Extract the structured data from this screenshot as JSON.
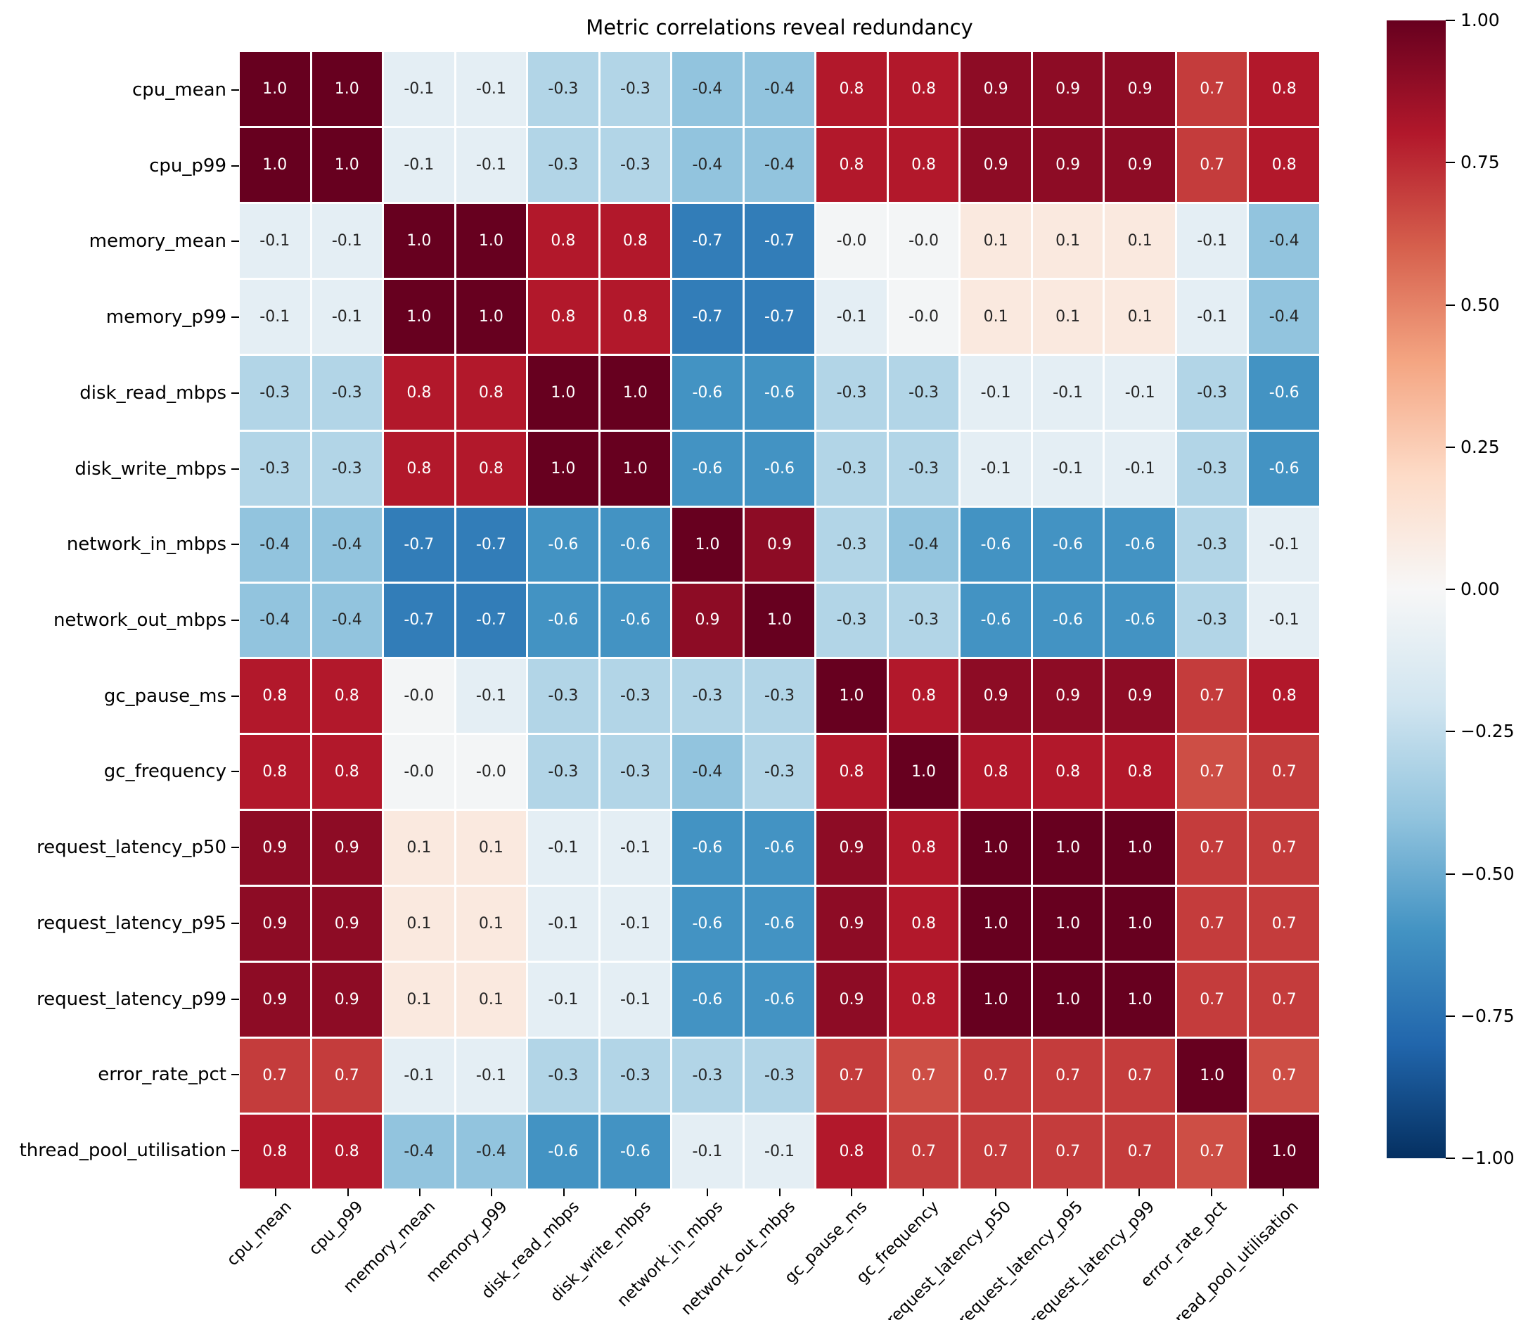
{
  "chart_data": {
    "type": "heatmap",
    "title": "Metric correlations reveal redundancy",
    "metrics": [
      "cpu_mean",
      "cpu_p99",
      "memory_mean",
      "memory_p99",
      "disk_read_mbps",
      "disk_write_mbps",
      "network_in_mbps",
      "network_out_mbps",
      "gc_pause_ms",
      "gc_frequency",
      "request_latency_p50",
      "request_latency_p95",
      "request_latency_p99",
      "error_rate_pct",
      "thread_pool_utilisation"
    ],
    "values": [
      [
        "1.0",
        "1.0",
        "-0.1",
        "-0.1",
        "-0.3",
        "-0.3",
        "-0.4",
        "-0.4",
        "0.8",
        "0.8",
        "0.9",
        "0.9",
        "0.9",
        "0.7",
        "0.8"
      ],
      [
        "1.0",
        "1.0",
        "-0.1",
        "-0.1",
        "-0.3",
        "-0.3",
        "-0.4",
        "-0.4",
        "0.8",
        "0.8",
        "0.9",
        "0.9",
        "0.9",
        "0.7",
        "0.8"
      ],
      [
        "-0.1",
        "-0.1",
        "1.0",
        "1.0",
        "0.8",
        "0.8",
        "-0.7",
        "-0.7",
        "-0.0",
        "-0.0",
        "0.1",
        "0.1",
        "0.1",
        "-0.1",
        "-0.4"
      ],
      [
        "-0.1",
        "-0.1",
        "1.0",
        "1.0",
        "0.8",
        "0.8",
        "-0.7",
        "-0.7",
        "-0.1",
        "-0.0",
        "0.1",
        "0.1",
        "0.1",
        "-0.1",
        "-0.4"
      ],
      [
        "-0.3",
        "-0.3",
        "0.8",
        "0.8",
        "1.0",
        "1.0",
        "-0.6",
        "-0.6",
        "-0.3",
        "-0.3",
        "-0.1",
        "-0.1",
        "-0.1",
        "-0.3",
        "-0.6"
      ],
      [
        "-0.3",
        "-0.3",
        "0.8",
        "0.8",
        "1.0",
        "1.0",
        "-0.6",
        "-0.6",
        "-0.3",
        "-0.3",
        "-0.1",
        "-0.1",
        "-0.1",
        "-0.3",
        "-0.6"
      ],
      [
        "-0.4",
        "-0.4",
        "-0.7",
        "-0.7",
        "-0.6",
        "-0.6",
        "1.0",
        "0.9",
        "-0.3",
        "-0.4",
        "-0.6",
        "-0.6",
        "-0.6",
        "-0.3",
        "-0.1"
      ],
      [
        "-0.4",
        "-0.4",
        "-0.7",
        "-0.7",
        "-0.6",
        "-0.6",
        "0.9",
        "1.0",
        "-0.3",
        "-0.3",
        "-0.6",
        "-0.6",
        "-0.6",
        "-0.3",
        "-0.1"
      ],
      [
        "0.8",
        "0.8",
        "-0.0",
        "-0.1",
        "-0.3",
        "-0.3",
        "-0.3",
        "-0.3",
        "1.0",
        "0.8",
        "0.9",
        "0.9",
        "0.9",
        "0.7",
        "0.8"
      ],
      [
        "0.8",
        "0.8",
        "-0.0",
        "-0.0",
        "-0.3",
        "-0.3",
        "-0.4",
        "-0.3",
        "0.8",
        "1.0",
        "0.8",
        "0.8",
        "0.8",
        "0.7",
        "0.7"
      ],
      [
        "0.9",
        "0.9",
        "0.1",
        "0.1",
        "-0.1",
        "-0.1",
        "-0.6",
        "-0.6",
        "0.9",
        "0.8",
        "1.0",
        "1.0",
        "1.0",
        "0.7",
        "0.7"
      ],
      [
        "0.9",
        "0.9",
        "0.1",
        "0.1",
        "-0.1",
        "-0.1",
        "-0.6",
        "-0.6",
        "0.9",
        "0.8",
        "1.0",
        "1.0",
        "1.0",
        "0.7",
        "0.7"
      ],
      [
        "0.9",
        "0.9",
        "0.1",
        "0.1",
        "-0.1",
        "-0.1",
        "-0.6",
        "-0.6",
        "0.9",
        "0.8",
        "1.0",
        "1.0",
        "1.0",
        "0.7",
        "0.7"
      ],
      [
        "0.7",
        "0.7",
        "-0.1",
        "-0.1",
        "-0.3",
        "-0.3",
        "-0.3",
        "-0.3",
        "0.7",
        "0.7",
        "0.7",
        "0.7",
        "0.7",
        "1.0",
        "0.7"
      ],
      [
        "0.8",
        "0.8",
        "-0.4",
        "-0.4",
        "-0.6",
        "-0.6",
        "-0.1",
        "-0.1",
        "0.8",
        "0.7",
        "0.7",
        "0.7",
        "0.7",
        "0.7",
        "1.0"
      ]
    ],
    "value_range": [
      -1,
      1
    ],
    "colormap": {
      "name": "RdBu_r",
      "domain": [
        -1,
        1
      ],
      "stops": [
        "#053061",
        "#2166ac",
        "#4393c3",
        "#92c4de",
        "#d1e5f0",
        "#f7f7f7",
        "#fddbc7",
        "#f4a582",
        "#d6604d",
        "#b2182b",
        "#67001f"
      ]
    },
    "color_value_overrides": {
      "9,13": 0.65,
      "13,9": 0.65,
      "13,14": 0.65,
      "14,13": 0.65
    },
    "negative_zero_color_value": -0.02,
    "annotation_text_colors": {
      "light": "#ffffff",
      "dark": "#262626"
    },
    "gridline_color": "#ffffff",
    "legend_position": "right",
    "colorbar": {
      "tick_labels": [
        "1.00",
        "0.75",
        "0.50",
        "0.25",
        "0.00",
        "−0.25",
        "−0.50",
        "−0.75",
        "−1.00"
      ],
      "top_value": 1.0,
      "bottom_value": -1.0
    }
  }
}
